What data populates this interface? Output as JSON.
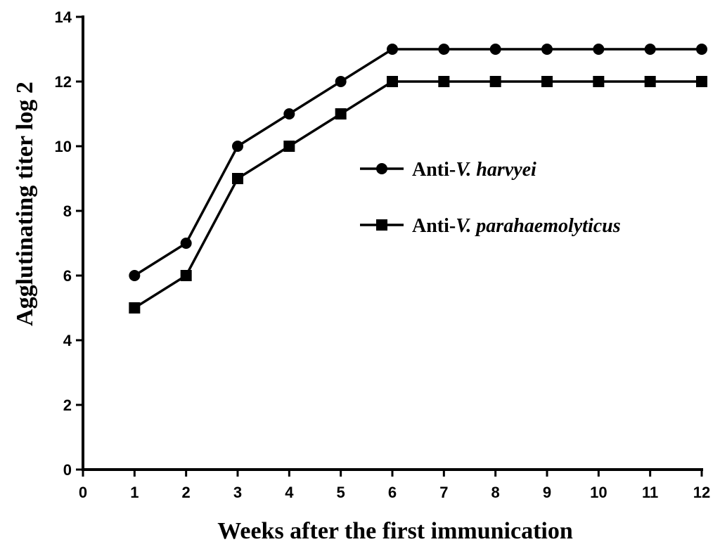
{
  "chart_data": {
    "type": "line",
    "title": "",
    "xlabel": "Weeks after the first immunication",
    "ylabel": "Agglutinating titer log 2",
    "xlim": [
      0,
      12
    ],
    "ylim": [
      0,
      14
    ],
    "xticks": [
      0,
      1,
      2,
      3,
      4,
      5,
      6,
      7,
      8,
      9,
      10,
      11,
      12
    ],
    "yticks": [
      0,
      2,
      4,
      6,
      8,
      10,
      12,
      14
    ],
    "x": [
      1,
      2,
      3,
      4,
      5,
      6,
      7,
      8,
      9,
      10,
      11,
      12
    ],
    "series": [
      {
        "name": "Anti-V. harvyei",
        "legend_prefix": "Anti-",
        "legend_italic": "V. harvyei",
        "marker": "circle",
        "values": [
          6,
          7,
          10,
          11,
          12,
          13,
          13,
          13,
          13,
          13,
          13,
          13
        ]
      },
      {
        "name": "Anti-V. parahaemolyticus",
        "legend_prefix": "Anti-",
        "legend_italic": "V. parahaemolyticus",
        "marker": "square",
        "values": [
          5,
          6,
          9,
          10,
          11,
          12,
          12,
          12,
          12,
          12,
          12,
          12
        ]
      }
    ],
    "legend_position": "center-right",
    "grid": false,
    "colors": {
      "line": "#000000",
      "background": "#ffffff"
    }
  }
}
